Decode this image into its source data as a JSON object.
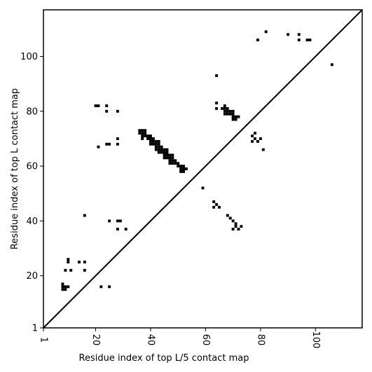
{
  "chart_data": {
    "type": "scatter",
    "title": "",
    "xlabel": "Residue index of top L/5 contact map",
    "ylabel": "Residue index of top L contact map",
    "xlim": [
      1,
      117
    ],
    "ylim": [
      1,
      117
    ],
    "xticks": [
      1,
      20,
      40,
      60,
      80,
      100
    ],
    "yticks": [
      1,
      20,
      40,
      60,
      80,
      100
    ],
    "grid": false,
    "diagonal": true,
    "marker_color": "#000000",
    "series": [
      {
        "points": [
          [
            36,
            73
          ],
          [
            37,
            73
          ],
          [
            38,
            73
          ],
          [
            36,
            72
          ],
          [
            37,
            72
          ],
          [
            38,
            72
          ],
          [
            37,
            71
          ],
          [
            38,
            71
          ],
          [
            39,
            71
          ],
          [
            40,
            71
          ],
          [
            37,
            70
          ],
          [
            39,
            70
          ],
          [
            40,
            70
          ],
          [
            41,
            70
          ],
          [
            40,
            69
          ],
          [
            41,
            69
          ],
          [
            42,
            69
          ],
          [
            43,
            69
          ],
          [
            40,
            68
          ],
          [
            41,
            68
          ],
          [
            42,
            68
          ],
          [
            43,
            68
          ],
          [
            42,
            67
          ],
          [
            43,
            67
          ],
          [
            44,
            67
          ],
          [
            42,
            66
          ],
          [
            43,
            66
          ],
          [
            44,
            66
          ],
          [
            45,
            66
          ],
          [
            46,
            66
          ],
          [
            43,
            65
          ],
          [
            44,
            65
          ],
          [
            45,
            65
          ],
          [
            46,
            65
          ],
          [
            45,
            64
          ],
          [
            46,
            64
          ],
          [
            47,
            64
          ],
          [
            48,
            64
          ],
          [
            45,
            63
          ],
          [
            46,
            63
          ],
          [
            47,
            63
          ],
          [
            48,
            63
          ],
          [
            47,
            62
          ],
          [
            48,
            62
          ],
          [
            49,
            62
          ],
          [
            47,
            61
          ],
          [
            48,
            61
          ],
          [
            49,
            61
          ],
          [
            50,
            61
          ],
          [
            50,
            60
          ],
          [
            51,
            60
          ],
          [
            52,
            60
          ],
          [
            51,
            59
          ],
          [
            52,
            59
          ],
          [
            53,
            59
          ],
          [
            51,
            58
          ],
          [
            52,
            58
          ],
          [
            20,
            82
          ],
          [
            21,
            82
          ],
          [
            24,
            82
          ],
          [
            24,
            80
          ],
          [
            28,
            80
          ],
          [
            28,
            70
          ],
          [
            24,
            68
          ],
          [
            25,
            68
          ],
          [
            28,
            68
          ],
          [
            21,
            67
          ],
          [
            16,
            42
          ],
          [
            25,
            40
          ],
          [
            28,
            40
          ],
          [
            29,
            40
          ],
          [
            28,
            37
          ],
          [
            31,
            37
          ],
          [
            10,
            26
          ],
          [
            10,
            25
          ],
          [
            14,
            25
          ],
          [
            16,
            25
          ],
          [
            9,
            22
          ],
          [
            11,
            22
          ],
          [
            16,
            22
          ],
          [
            8,
            17
          ],
          [
            8,
            16
          ],
          [
            9,
            16
          ],
          [
            10,
            16
          ],
          [
            8,
            15
          ],
          [
            9,
            15
          ],
          [
            22,
            16
          ],
          [
            25,
            16
          ],
          [
            64,
            93
          ],
          [
            64,
            83
          ],
          [
            64,
            81
          ],
          [
            67,
            82
          ],
          [
            66,
            81
          ],
          [
            67,
            81
          ],
          [
            68,
            81
          ],
          [
            67,
            80
          ],
          [
            68,
            80
          ],
          [
            69,
            80
          ],
          [
            70,
            80
          ],
          [
            67,
            79
          ],
          [
            68,
            79
          ],
          [
            69,
            79
          ],
          [
            70,
            79
          ],
          [
            70,
            78
          ],
          [
            71,
            78
          ],
          [
            72,
            78
          ],
          [
            70,
            77
          ],
          [
            71,
            77
          ],
          [
            59,
            52
          ],
          [
            63,
            47
          ],
          [
            64,
            46
          ],
          [
            63,
            45
          ],
          [
            65,
            45
          ],
          [
            68,
            42
          ],
          [
            69,
            41
          ],
          [
            70,
            40
          ],
          [
            71,
            39
          ],
          [
            71,
            38
          ],
          [
            73,
            38
          ],
          [
            70,
            37
          ],
          [
            72,
            37
          ],
          [
            78,
            72
          ],
          [
            77,
            71
          ],
          [
            78,
            70
          ],
          [
            80,
            70
          ],
          [
            77,
            69
          ],
          [
            79,
            69
          ],
          [
            81,
            66
          ],
          [
            82,
            109
          ],
          [
            90,
            108
          ],
          [
            94,
            108
          ],
          [
            79,
            106
          ],
          [
            94,
            106
          ],
          [
            97,
            106
          ],
          [
            98,
            106
          ],
          [
            106,
            97
          ]
        ]
      }
    ]
  }
}
